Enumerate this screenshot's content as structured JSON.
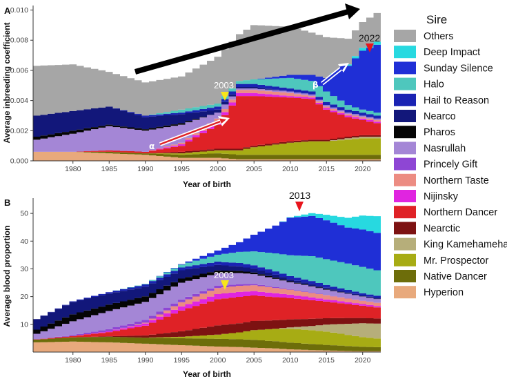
{
  "colors": {
    "Others": "#a6a6a6",
    "Deep Impact": "#27d9e0",
    "Sunday Silence": "#1f2fd6",
    "Halo": "#4ec7bd",
    "Hail to Reason": "#1a23b3",
    "Nearco": "#12177a",
    "Pharos": "#050505",
    "Nasrullah": "#a486d6",
    "Princely Gift": "#8e46d4",
    "Northern Taste": "#ec8c82",
    "Nijinsky": "#e025e0",
    "Northern Dancer": "#df2226",
    "Nearctic": "#7d1212",
    "King Kamehameha": "#b6ae7a",
    "Mr. Prospector": "#a7ac14",
    "Native Dancer": "#6d6d0a",
    "Hyperion": "#e8a97c"
  },
  "legend": {
    "title": "Sire",
    "items": [
      "Others",
      "Deep Impact",
      "Sunday Silence",
      "Halo",
      "Hail to Reason",
      "Nearco",
      "Pharos",
      "Nasrullah",
      "Princely Gift",
      "Northern Taste",
      "Nijinsky",
      "Northern Dancer",
      "Nearctic",
      "King Kamehameha",
      "Mr. Prospector",
      "Native Dancer",
      "Hyperion"
    ]
  },
  "chart_data": [
    {
      "panel": "A",
      "type": "area",
      "xlabel": "Year of birth",
      "ylabel": "Average inbreeding coefficient",
      "xlim": [
        1975,
        2023
      ],
      "ylim": [
        0,
        0.0103
      ],
      "xticks": [
        1980,
        1985,
        1990,
        1995,
        2000,
        2005,
        2010,
        2015,
        2020
      ],
      "xtick_labels": [
        "1980",
        "1985",
        "1990",
        "1995",
        "2000",
        "2005",
        "2010",
        "2015",
        "2020"
      ],
      "yticks": [
        0,
        0.002,
        0.004,
        0.006,
        0.008,
        0.01
      ],
      "ytick_labels": [
        "0.000",
        "0.002",
        "0.004",
        "0.006",
        "0.008",
        "0.010"
      ],
      "anchor_years": [
        1975,
        1980,
        1985,
        1990,
        1995,
        2000,
        2003,
        2005,
        2010,
        2013,
        2015,
        2018,
        2020,
        2022,
        2023
      ],
      "series": [
        {
          "name": "Hyperion",
          "values": [
            0.0006,
            0.0006,
            0.0005,
            0.0004,
            0.0002,
            0.0002,
            0.0001,
            0.0001,
            0.0001,
            0.0001,
            0.0001,
            0.0001,
            0.0001,
            0.0001,
            0.0001
          ]
        },
        {
          "name": "Native Dancer",
          "values": [
            0,
            0,
            0.0001,
            0.0001,
            0.0002,
            0.0003,
            0.0003,
            0.0003,
            0.0003,
            0.0003,
            0.0003,
            0.0003,
            0.0003,
            0.0003,
            0.0003
          ]
        },
        {
          "name": "Mr. Prospector",
          "values": [
            0,
            0,
            0,
            0,
            0.0001,
            0.0002,
            0.0003,
            0.0005,
            0.0008,
            0.0009,
            0.0009,
            0.001,
            0.0011,
            0.0011,
            0.0011
          ]
        },
        {
          "name": "King Kamehameha",
          "values": [
            0,
            0,
            0,
            0,
            0,
            0,
            0,
            0,
            0,
            0,
            0,
            0.0001,
            0.0001,
            0.0001,
            0.0001
          ]
        },
        {
          "name": "Nearctic",
          "values": [
            0,
            0,
            0,
            0,
            0.0001,
            0.0001,
            0.0001,
            0.0001,
            0.0001,
            0.0001,
            0.0001,
            0.0001,
            0.0001,
            0.0001,
            0.0001
          ]
        },
        {
          "name": "Northern Dancer",
          "values": [
            0,
            0,
            0.0001,
            0.0001,
            0.0004,
            0.0016,
            0.0035,
            0.0033,
            0.0029,
            0.0027,
            0.002,
            0.0013,
            0.001,
            0.0008,
            0.0007
          ]
        },
        {
          "name": "Nijinsky",
          "values": [
            0,
            0,
            0,
            0,
            0.0001,
            0.0002,
            0.0002,
            0.0002,
            0.0001,
            0.0001,
            0.0001,
            0.0001,
            0.0001,
            0.0001,
            0.0001
          ]
        },
        {
          "name": "Northern Taste",
          "values": [
            0,
            0,
            0,
            0,
            0.0001,
            0.0002,
            0.0002,
            0.0002,
            0.0002,
            0.0001,
            0.0001,
            0.0001,
            0.0001,
            0.0001,
            0.0001
          ]
        },
        {
          "name": "Princely Gift",
          "values": [
            0,
            0,
            0,
            0,
            0,
            0,
            0,
            0,
            0,
            0,
            0,
            0,
            0,
            0,
            0
          ]
        },
        {
          "name": "Nasrullah",
          "values": [
            0.0008,
            0.0012,
            0.0016,
            0.0014,
            0.0012,
            0.0004,
            0.0001,
            0.0001,
            0.0001,
            0.0001,
            0.0001,
            0.0001,
            0.0001,
            0.0001,
            0.0001
          ]
        },
        {
          "name": "Pharos",
          "values": [
            0.0002,
            0.0002,
            0.0001,
            0.0001,
            0.0001,
            0,
            0,
            0,
            0,
            0,
            0,
            0,
            0,
            0,
            0
          ]
        },
        {
          "name": "Nearco",
          "values": [
            0.0014,
            0.0013,
            0.0012,
            0.0008,
            0.0006,
            0.0002,
            0.0001,
            0.0001,
            0,
            0,
            0,
            0,
            0,
            0,
            0
          ]
        },
        {
          "name": "Hail to Reason",
          "values": [
            0,
            0,
            0,
            0.0001,
            0.0001,
            0.0002,
            0.0002,
            0.0002,
            0.0002,
            0.0002,
            0.0002,
            0.0002,
            0.0002,
            0.0002,
            0.0002
          ]
        },
        {
          "name": "Halo",
          "values": [
            0,
            0,
            0,
            0,
            0.0002,
            0.0002,
            0.0002,
            0.0003,
            0.0007,
            0.0007,
            0.0007,
            0.0003,
            0.0002,
            0.0002,
            0.0002
          ]
        },
        {
          "name": "Sunday Silence",
          "values": [
            0,
            0,
            0,
            0,
            0,
            0,
            0,
            0,
            0.0002,
            0.0004,
            0.0009,
            0.0026,
            0.0039,
            0.0045,
            0.0038
          ]
        },
        {
          "name": "Deep Impact",
          "values": [
            0,
            0,
            0,
            0,
            0,
            0,
            0,
            0,
            0,
            0,
            0,
            0.0001,
            0.0002,
            0.0002,
            0.0002
          ]
        },
        {
          "name": "Others",
          "values": [
            0.0033,
            0.0031,
            0.0023,
            0.0022,
            0.0022,
            0.0031,
            0.0031,
            0.0036,
            0.0032,
            0.0028,
            0.0027,
            0.0017,
            0.0017,
            0.0019,
            0.0028
          ]
        }
      ],
      "annotations": {
        "year_a": "2003",
        "year_b": "2022",
        "greek_a": "α",
        "greek_b": "β"
      }
    },
    {
      "panel": "B",
      "type": "area",
      "xlabel": "Year of birth",
      "ylabel": "Average blood proportion",
      "xlim": [
        1975,
        2023
      ],
      "ylim": [
        0,
        55.5
      ],
      "xticks": [
        1980,
        1985,
        1990,
        1995,
        2000,
        2005,
        2010,
        2015,
        2020
      ],
      "xtick_labels": [
        "1980",
        "1985",
        "1990",
        "1995",
        "2000",
        "2005",
        "2010",
        "2015",
        "2020"
      ],
      "yticks": [
        10,
        20,
        30,
        40,
        50
      ],
      "ytick_labels": [
        "10",
        "20",
        "30",
        "40",
        "50"
      ],
      "anchor_years": [
        1975,
        1980,
        1985,
        1990,
        1995,
        2000,
        2003,
        2005,
        2008,
        2010,
        2013,
        2015,
        2018,
        2020,
        2023
      ],
      "series": [
        {
          "name": "Hyperion",
          "values": [
            3.5,
            3.8,
            3.5,
            3.0,
            2.5,
            2.0,
            1.8,
            1.6,
            1.3,
            1.0,
            0.7,
            0.6,
            0.4,
            0.3,
            0.3
          ]
        },
        {
          "name": "Native Dancer",
          "values": [
            1.0,
            1.5,
            2.0,
            2.2,
            2.5,
            2.8,
            2.8,
            2.8,
            2.6,
            2.4,
            2.2,
            2.0,
            1.8,
            1.6,
            1.4
          ]
        },
        {
          "name": "Mr. Prospector",
          "values": [
            0,
            0,
            0,
            0,
            0.5,
            1.5,
            2.5,
            3.5,
            4.5,
            5.0,
            5.0,
            4.8,
            4.0,
            3.5,
            3.0
          ]
        },
        {
          "name": "King Kamehameha",
          "values": [
            0,
            0,
            0,
            0,
            0,
            0,
            0,
            0,
            0,
            0.5,
            1.5,
            2.5,
            4.0,
            5.0,
            5.5
          ]
        },
        {
          "name": "Nearctic",
          "values": [
            0,
            0,
            0.2,
            0.8,
            2.0,
            3.3,
            3.3,
            3.3,
            3.1,
            2.9,
            2.6,
            2.3,
            2.1,
            1.9,
            1.8
          ]
        },
        {
          "name": "Northern Dancer",
          "values": [
            0.1,
            0.5,
            1.5,
            3.5,
            7.5,
            9.5,
            9.5,
            9.2,
            8.3,
            7.7,
            6.7,
            6.0,
            5.0,
            4.4,
            3.8
          ]
        },
        {
          "name": "Nijinsky",
          "values": [
            0,
            0,
            0.3,
            0.8,
            1.5,
            1.8,
            1.8,
            1.6,
            1.4,
            1.2,
            1.0,
            0.8,
            0.7,
            0.6,
            0.5
          ]
        },
        {
          "name": "Northern Taste",
          "values": [
            0,
            0,
            0,
            0.3,
            1.5,
            2.2,
            2.2,
            2.1,
            1.9,
            1.8,
            1.6,
            1.5,
            1.3,
            1.2,
            1.1
          ]
        },
        {
          "name": "Princely Gift",
          "values": [
            0,
            0.3,
            0.8,
            1.0,
            1.0,
            0.8,
            0.6,
            0.5,
            0.3,
            0.2,
            0.2,
            0.1,
            0.1,
            0.1,
            0.1
          ]
        },
        {
          "name": "Nasrullah",
          "values": [
            2.0,
            5.0,
            6.5,
            6.5,
            6.0,
            4.5,
            4.0,
            3.5,
            3.0,
            2.5,
            2.2,
            1.9,
            1.6,
            1.4,
            1.2
          ]
        },
        {
          "name": "Pharos",
          "values": [
            1.5,
            2.5,
            2.3,
            2.0,
            1.5,
            1.0,
            0.8,
            0.6,
            0.4,
            0.3,
            0.2,
            0.2,
            0.1,
            0.1,
            0.1
          ]
        },
        {
          "name": "Nearco",
          "values": [
            3.8,
            4.5,
            4.0,
            3.5,
            3.0,
            2.0,
            1.6,
            1.4,
            1.1,
            0.8,
            0.6,
            0.5,
            0.4,
            0.3,
            0.3
          ]
        },
        {
          "name": "Hail to Reason",
          "values": [
            0,
            0.2,
            0.5,
            0.8,
            1.0,
            1.2,
            1.2,
            1.2,
            1.2,
            1.1,
            1.1,
            1.0,
            0.9,
            0.8,
            0.8
          ]
        },
        {
          "name": "Halo",
          "values": [
            0,
            0,
            0,
            0.2,
            1.0,
            2.5,
            4.0,
            5.0,
            6.5,
            7.5,
            9.0,
            9.3,
            9.5,
            9.5,
            9.0
          ]
        },
        {
          "name": "Sunday Silence",
          "values": [
            0,
            0,
            0,
            0,
            0.2,
            1.5,
            3.5,
            6.0,
            10.0,
            13.5,
            14.5,
            14.0,
            13.0,
            13.5,
            13.5
          ]
        },
        {
          "name": "Deep Impact",
          "values": [
            0,
            0,
            0,
            0,
            0,
            0,
            0,
            0,
            0,
            0.2,
            1.0,
            2.0,
            3.5,
            5.0,
            6.5
          ]
        },
        {
          "name": "Others",
          "values": [
            0,
            0,
            0,
            0,
            0,
            0,
            0,
            0,
            0,
            0,
            0,
            0,
            0,
            0,
            0
          ]
        }
      ],
      "annotations": {
        "year_a": "2003",
        "year_b": "2013"
      }
    }
  ]
}
